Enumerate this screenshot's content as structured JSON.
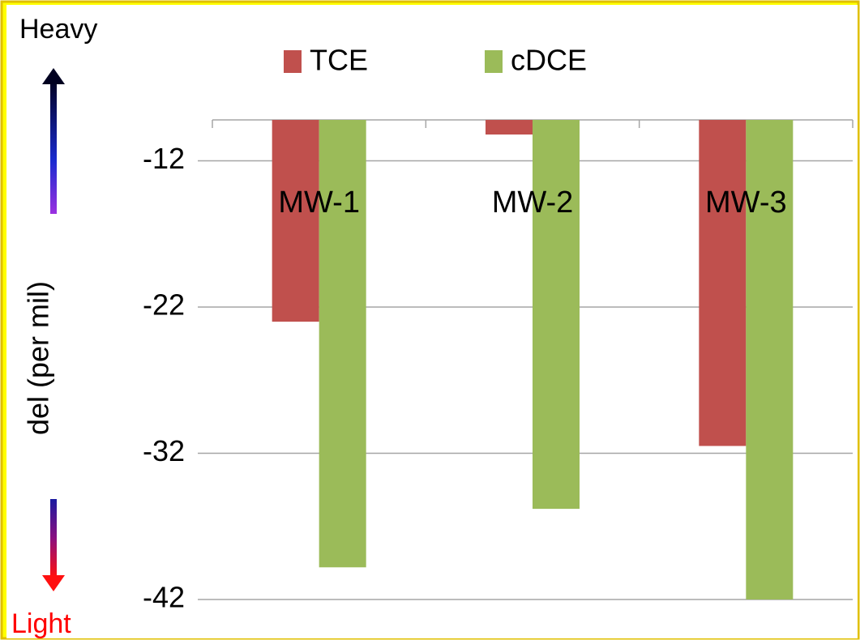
{
  "chart_data": {
    "type": "bar",
    "y_label": "del (per mil)",
    "annotations": [
      "Heavy",
      "Light"
    ],
    "categories": [
      "MW-1",
      "MW-2",
      "MW-3"
    ],
    "series": [
      {
        "name": "TCE",
        "color": "#c0504d",
        "values": [
          -23,
          -10.2,
          -31.5
        ]
      },
      {
        "name": "cDCE",
        "color": "#9bbb59",
        "values": [
          -39.8,
          -35.8,
          -42
        ]
      }
    ],
    "ylim": [
      -42,
      -9.2
    ],
    "yticks": [
      -12,
      -22,
      -32,
      -42
    ],
    "grid": true,
    "legend": "top"
  }
}
